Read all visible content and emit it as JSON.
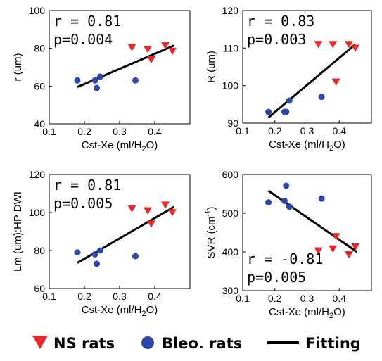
{
  "colors": {
    "ns": "#e8282a",
    "bleo": "#2b47a8",
    "fit": "#000000"
  },
  "legend": {
    "position": "bottom",
    "items": [
      {
        "key": "ns",
        "label": "NS rats",
        "marker": "triangle-down"
      },
      {
        "key": "bleo",
        "label": "Bleo. rats",
        "marker": "circle"
      },
      {
        "key": "fit",
        "label": "Fitting",
        "marker": "line"
      }
    ]
  },
  "chart_data": [
    {
      "type": "scatter",
      "xlabel_main": "Cst-Xe (ml/H",
      "xlabel_sub": "2",
      "xlabel_end": "O)",
      "ylabel": "r (um)",
      "ylabel_sup": "",
      "ylabel_end": "",
      "xlim": [
        0.1,
        0.5
      ],
      "ylim": [
        40,
        100
      ],
      "xticks": [
        "0.1",
        "0.2",
        "0.3",
        "0.4"
      ],
      "yticks": [
        "40",
        "60",
        "80",
        "100"
      ],
      "stat_r": "r = 0.81",
      "stat_p": "p=0.004",
      "stat_position": "top-left",
      "series": [
        {
          "key": "ns",
          "name": "NS rats",
          "points": [
            [
              0.335,
              80.5
            ],
            [
              0.38,
              79.5
            ],
            [
              0.39,
              74
            ],
            [
              0.43,
              81.5
            ],
            [
              0.45,
              78.5
            ]
          ]
        },
        {
          "key": "bleo",
          "name": "Bleo. rats",
          "points": [
            [
              0.18,
              63
            ],
            [
              0.23,
              63
            ],
            [
              0.235,
              59
            ],
            [
              0.245,
              65
            ],
            [
              0.345,
              63
            ]
          ]
        }
      ],
      "fit_line": [
        [
          0.18,
          59.5
        ],
        [
          0.455,
          81.5
        ]
      ]
    },
    {
      "type": "scatter",
      "xlabel_main": "Cst-Xe (ml/H",
      "xlabel_sub": "2",
      "xlabel_end": "O)",
      "ylabel": "R (um)",
      "ylabel_sup": "",
      "ylabel_end": "",
      "xlim": [
        0.1,
        0.5
      ],
      "ylim": [
        90,
        120
      ],
      "xticks": [
        "0.1",
        "0.2",
        "0.3",
        "0.4"
      ],
      "yticks": [
        "90",
        "100",
        "110",
        "120"
      ],
      "stat_r": "r = 0.83",
      "stat_p": "p=0.003",
      "stat_position": "top-left",
      "series": [
        {
          "key": "ns",
          "name": "NS rats",
          "points": [
            [
              0.335,
              111
            ],
            [
              0.38,
              111
            ],
            [
              0.39,
              101
            ],
            [
              0.43,
              111
            ],
            [
              0.45,
              110
            ]
          ]
        },
        {
          "key": "bleo",
          "name": "Bleo. rats",
          "points": [
            [
              0.18,
              93
            ],
            [
              0.23,
              93
            ],
            [
              0.235,
              93
            ],
            [
              0.245,
              96
            ],
            [
              0.345,
              97
            ]
          ]
        }
      ],
      "fit_line": [
        [
          0.18,
          91.5
        ],
        [
          0.45,
          111
        ]
      ]
    },
    {
      "type": "scatter",
      "xlabel_main": "Cst-Xe (ml/H",
      "xlabel_sub": "2",
      "xlabel_end": "O)",
      "ylabel": "Lm (um):HP DWI",
      "ylabel_sup": "",
      "ylabel_end": "",
      "xlim": [
        0.1,
        0.5
      ],
      "ylim": [
        60,
        120
      ],
      "xticks": [
        "0.1",
        "0.2",
        "0.3",
        "0.4"
      ],
      "yticks": [
        "60",
        "80",
        "100",
        "120"
      ],
      "stat_r": "r = 0.81",
      "stat_p": "p=0.005",
      "stat_position": "top-left",
      "series": [
        {
          "key": "ns",
          "name": "NS rats",
          "points": [
            [
              0.335,
              102
            ],
            [
              0.38,
              101
            ],
            [
              0.39,
              94
            ],
            [
              0.43,
              104
            ],
            [
              0.45,
              100
            ]
          ]
        },
        {
          "key": "bleo",
          "name": "Bleo. rats",
          "points": [
            [
              0.18,
              79
            ],
            [
              0.23,
              78
            ],
            [
              0.235,
              73
            ],
            [
              0.245,
              80
            ],
            [
              0.345,
              77
            ]
          ]
        }
      ],
      "fit_line": [
        [
          0.18,
          73.5
        ],
        [
          0.455,
          103
        ]
      ]
    },
    {
      "type": "scatter",
      "xlabel_main": "Cst-Xe (ml/H",
      "xlabel_sub": "2",
      "xlabel_end": "O)",
      "ylabel": "SVR (cm",
      "ylabel_sup": "-1",
      "ylabel_end": ")",
      "xlim": [
        0.1,
        0.5
      ],
      "ylim": [
        300,
        600
      ],
      "xticks": [
        "0.1",
        "0.2",
        "0.3",
        "0.4"
      ],
      "yticks": [
        "300",
        "400",
        "500",
        "600"
      ],
      "stat_r": "r = -0.81",
      "stat_p": "p=0.005",
      "stat_position": "bottom-left",
      "series": [
        {
          "key": "ns",
          "name": "NS rats",
          "points": [
            [
              0.335,
              403
            ],
            [
              0.38,
              408
            ],
            [
              0.39,
              440
            ],
            [
              0.43,
              393
            ],
            [
              0.45,
              413
            ]
          ]
        },
        {
          "key": "bleo",
          "name": "Bleo. rats",
          "points": [
            [
              0.18,
              528
            ],
            [
              0.23,
              532
            ],
            [
              0.235,
              571
            ],
            [
              0.245,
              517
            ],
            [
              0.345,
              538
            ]
          ]
        }
      ],
      "fit_line": [
        [
          0.18,
          558
        ],
        [
          0.455,
          400
        ]
      ]
    }
  ]
}
